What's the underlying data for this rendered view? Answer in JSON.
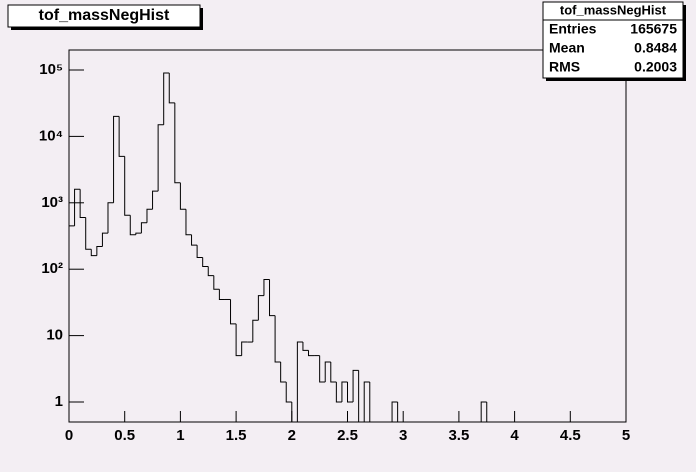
{
  "chart_data": {
    "type": "histogram",
    "title": "tof_massNegHist",
    "bins": [
      0,
      0.05,
      0.1,
      0.15,
      0.2,
      0.25,
      0.3,
      0.35,
      0.4,
      0.45,
      0.5,
      0.55,
      0.6,
      0.65,
      0.7,
      0.75,
      0.8,
      0.85,
      0.9,
      0.95,
      1,
      1.05,
      1.1,
      1.15,
      1.2,
      1.25,
      1.3,
      1.35,
      1.4,
      1.45,
      1.5,
      1.55,
      1.6,
      1.65,
      1.7,
      1.75,
      1.8,
      1.85,
      1.9,
      1.95,
      2,
      2.05,
      2.1,
      2.15,
      2.2,
      2.25,
      2.3,
      2.35,
      2.4,
      2.45,
      2.5,
      2.55,
      2.6,
      2.65,
      2.7,
      2.75,
      2.8,
      2.85,
      2.9,
      2.95,
      3,
      3.05,
      3.1,
      3.15,
      3.2,
      3.25,
      3.3,
      3.35,
      3.4,
      3.45,
      3.5,
      3.55,
      3.6,
      3.65,
      3.7,
      3.75,
      3.8,
      3.85,
      3.9,
      3.95,
      4,
      4.05,
      4.1,
      4.15,
      4.2,
      4.25,
      4.3,
      4.35,
      4.4,
      4.45,
      4.5,
      4.55,
      4.6,
      4.65,
      4.7,
      4.75,
      4.8,
      4.85,
      4.9,
      4.95,
      5
    ],
    "values": [
      450,
      1600,
      600,
      200,
      160,
      220,
      350,
      1000,
      20000,
      5000,
      650,
      330,
      350,
      500,
      800,
      1500,
      15000,
      90000,
      32000,
      2000,
      800,
      330,
      230,
      150,
      110,
      80,
      50,
      35,
      35,
      15,
      5,
      8,
      8,
      17,
      40,
      70,
      20,
      4,
      2,
      1,
      0,
      8,
      6,
      5,
      5,
      2,
      4,
      2,
      1,
      2,
      1,
      3,
      0,
      2,
      0,
      0,
      0,
      0,
      1,
      0,
      0,
      0,
      0,
      0,
      0,
      0,
      0,
      0,
      0,
      0,
      0,
      0,
      0,
      0,
      1,
      0,
      0,
      0,
      0,
      0,
      0,
      0,
      0,
      0,
      0,
      0,
      0,
      0,
      0,
      0,
      0,
      0,
      0,
      0,
      0,
      0,
      0,
      0,
      0,
      0
    ],
    "color": "#000000",
    "log_y": true,
    "xlim": [
      0,
      5
    ],
    "ylim": [
      0.5,
      200000
    ],
    "xticks": [
      0,
      0.5,
      1,
      1.5,
      2,
      2.5,
      3,
      3.5,
      4,
      4.5,
      5
    ],
    "yticks": [
      1,
      10,
      {
        "value": 100,
        "label": "10²"
      },
      {
        "value": 1000,
        "label": "10³"
      },
      {
        "value": 10000,
        "label": "10⁴"
      },
      {
        "value": 100000,
        "label": "10⁵"
      }
    ],
    "stats": {
      "title": "tof_massNegHist",
      "rows": [
        [
          "Entries",
          165675
        ],
        [
          "Mean",
          0.8484
        ],
        [
          "RMS",
          0.2003
        ]
      ]
    }
  }
}
